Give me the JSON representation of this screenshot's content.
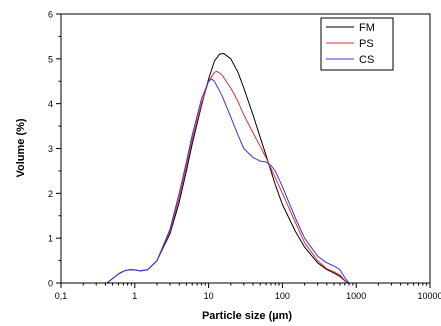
{
  "chart_data": {
    "type": "line",
    "xlabel": "Particle size (µm)",
    "ylabel": "Volume (%)",
    "x_scale": "log",
    "xlim": [
      0.1,
      10000
    ],
    "ylim": [
      0,
      6
    ],
    "x_ticks": [
      0.1,
      1,
      10,
      100,
      1000,
      10000
    ],
    "x_tick_labels": [
      "0,1",
      "1",
      "10",
      "100",
      "1000",
      "10000"
    ],
    "y_ticks": [
      0,
      1,
      2,
      3,
      4,
      5,
      6
    ],
    "y_tick_labels": [
      "0",
      "1",
      "2",
      "3",
      "4",
      "5",
      "6"
    ],
    "grid": false,
    "legend_position": "top-right",
    "series": [
      {
        "name": "FM",
        "color": "#000000",
        "x": [
          0.42,
          0.5,
          0.6,
          0.7,
          0.8,
          0.9,
          1.0,
          1.2,
          1.5,
          2,
          3,
          4,
          5,
          6,
          8,
          10,
          12,
          14,
          16,
          20,
          25,
          30,
          40,
          50,
          60,
          80,
          100,
          150,
          200,
          300,
          400,
          500,
          600,
          700,
          780
        ],
        "y": [
          0.0,
          0.1,
          0.2,
          0.26,
          0.29,
          0.3,
          0.29,
          0.27,
          0.3,
          0.5,
          1.1,
          1.8,
          2.5,
          3.1,
          3.95,
          4.55,
          4.95,
          5.1,
          5.12,
          5.0,
          4.7,
          4.35,
          3.75,
          3.25,
          2.85,
          2.2,
          1.75,
          1.15,
          0.8,
          0.45,
          0.3,
          0.22,
          0.15,
          0.05,
          0.0
        ]
      },
      {
        "name": "PS",
        "color": "#e03030",
        "x": [
          0.42,
          0.5,
          0.6,
          0.7,
          0.8,
          0.9,
          1.0,
          1.2,
          1.5,
          2,
          3,
          4,
          5,
          6,
          8,
          10,
          12,
          13,
          15,
          20,
          25,
          30,
          40,
          50,
          60,
          80,
          100,
          150,
          200,
          300,
          400,
          500,
          600,
          700,
          780
        ],
        "y": [
          0.0,
          0.1,
          0.2,
          0.26,
          0.29,
          0.3,
          0.29,
          0.27,
          0.3,
          0.5,
          1.15,
          1.9,
          2.6,
          3.2,
          4.0,
          4.5,
          4.7,
          4.72,
          4.65,
          4.35,
          4.05,
          3.75,
          3.35,
          3.05,
          2.8,
          2.35,
          2.0,
          1.35,
          0.9,
          0.5,
          0.32,
          0.25,
          0.18,
          0.06,
          0.0
        ]
      },
      {
        "name": "CS",
        "color": "#3535e0",
        "x": [
          0.42,
          0.5,
          0.6,
          0.7,
          0.8,
          0.9,
          1.0,
          1.2,
          1.5,
          2,
          3,
          4,
          5,
          6,
          8,
          10,
          11,
          12,
          15,
          20,
          25,
          30,
          40,
          50,
          60,
          70,
          80,
          100,
          150,
          200,
          300,
          400,
          500,
          600,
          700,
          800
        ],
        "y": [
          0.0,
          0.1,
          0.2,
          0.26,
          0.29,
          0.3,
          0.29,
          0.27,
          0.3,
          0.5,
          1.2,
          2.0,
          2.7,
          3.3,
          4.1,
          4.5,
          4.55,
          4.5,
          4.2,
          3.7,
          3.3,
          3.0,
          2.8,
          2.72,
          2.7,
          2.62,
          2.5,
          2.15,
          1.45,
          1.0,
          0.6,
          0.45,
          0.38,
          0.3,
          0.12,
          0.0
        ]
      }
    ]
  }
}
